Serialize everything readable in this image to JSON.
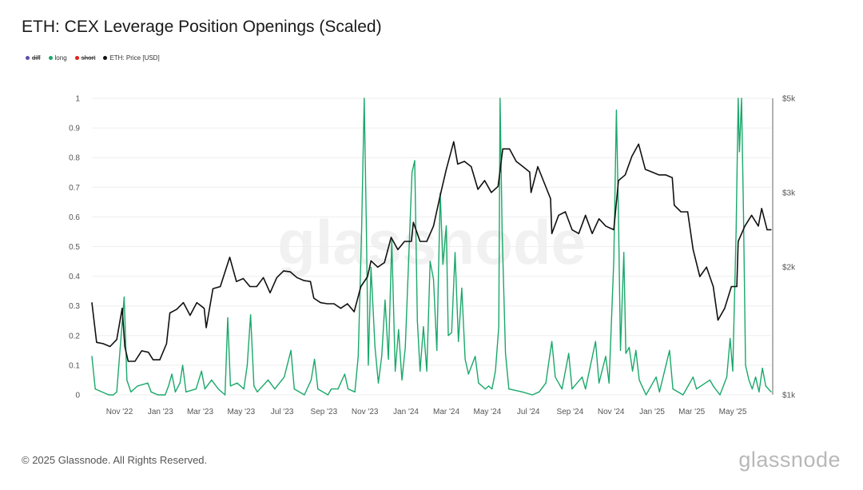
{
  "title": "ETH: CEX Leverage Position Openings (Scaled)",
  "legend": [
    {
      "label": "diff",
      "color": "#5b4fa8",
      "hidden": true
    },
    {
      "label": "long",
      "color": "#1aa86a",
      "hidden": false
    },
    {
      "label": "short",
      "color": "#e0211b",
      "hidden": true
    },
    {
      "label": "ETH: Price [USD]",
      "color": "#111111",
      "hidden": false
    }
  ],
  "watermark": "glassnode",
  "footer": {
    "copyright": "© 2025 Glassnode. All Rights Reserved.",
    "logo": "glassnode"
  },
  "colors": {
    "long": "#1aa86a",
    "price": "#111111",
    "grid": "#eeeeee"
  },
  "chart_data": {
    "type": "line",
    "x_ticks": [
      "Nov '22",
      "Jan '23",
      "Mar '23",
      "May '23",
      "Jul '23",
      "Sep '23",
      "Nov '23",
      "Jan '24",
      "Mar '24",
      "May '24",
      "Jul '24",
      "Sep '24",
      "Nov '24",
      "Jan '25",
      "Mar '25",
      "May '25"
    ],
    "x_range": [
      "2022-09-21",
      "2025-06-27"
    ],
    "y_left": {
      "ticks": [
        "0",
        "0.1",
        "0.2",
        "0.3",
        "0.4",
        "0.5",
        "0.6",
        "0.7",
        "0.8",
        "0.9",
        "1"
      ],
      "range": [
        0,
        1
      ]
    },
    "y_right": {
      "ticks": [
        "$1k",
        "$2k",
        "$3k",
        "$5k"
      ],
      "scale": "log",
      "range": [
        1000,
        5000
      ]
    },
    "series": [
      {
        "name": "long",
        "axis": "left",
        "points": [
          [
            "2022-09-21",
            0.13
          ],
          [
            "2022-09-26",
            0.02
          ],
          [
            "2022-10-16",
            0.0
          ],
          [
            "2022-10-23",
            0.0
          ],
          [
            "2022-10-28",
            0.01
          ],
          [
            "2022-11-08",
            0.33
          ],
          [
            "2022-11-12",
            0.05
          ],
          [
            "2022-11-18",
            0.01
          ],
          [
            "2022-11-28",
            0.03
          ],
          [
            "2022-12-13",
            0.04
          ],
          [
            "2022-12-18",
            0.01
          ],
          [
            "2022-12-28",
            0.0
          ],
          [
            "2023-01-08",
            0.0
          ],
          [
            "2023-01-13",
            0.03
          ],
          [
            "2023-01-18",
            0.07
          ],
          [
            "2023-01-23",
            0.01
          ],
          [
            "2023-01-30",
            0.04
          ],
          [
            "2023-02-03",
            0.1
          ],
          [
            "2023-02-08",
            0.01
          ],
          [
            "2023-02-23",
            0.02
          ],
          [
            "2023-03-03",
            0.08
          ],
          [
            "2023-03-08",
            0.02
          ],
          [
            "2023-03-18",
            0.05
          ],
          [
            "2023-03-28",
            0.02
          ],
          [
            "2023-04-07",
            0.0
          ],
          [
            "2023-04-11",
            0.26
          ],
          [
            "2023-04-15",
            0.03
          ],
          [
            "2023-04-25",
            0.04
          ],
          [
            "2023-05-05",
            0.02
          ],
          [
            "2023-05-10",
            0.1
          ],
          [
            "2023-05-15",
            0.27
          ],
          [
            "2023-05-20",
            0.03
          ],
          [
            "2023-05-25",
            0.01
          ],
          [
            "2023-06-10",
            0.05
          ],
          [
            "2023-06-20",
            0.02
          ],
          [
            "2023-07-04",
            0.06
          ],
          [
            "2023-07-14",
            0.15
          ],
          [
            "2023-07-19",
            0.02
          ],
          [
            "2023-08-03",
            0.0
          ],
          [
            "2023-08-13",
            0.05
          ],
          [
            "2023-08-18",
            0.12
          ],
          [
            "2023-08-23",
            0.02
          ],
          [
            "2023-09-07",
            0.0
          ],
          [
            "2023-09-12",
            0.02
          ],
          [
            "2023-09-22",
            0.02
          ],
          [
            "2023-10-02",
            0.07
          ],
          [
            "2023-10-07",
            0.02
          ],
          [
            "2023-10-17",
            0.01
          ],
          [
            "2023-10-22",
            0.13
          ],
          [
            "2023-10-27",
            0.55
          ],
          [
            "2023-10-31",
            1.0
          ],
          [
            "2023-11-03",
            0.58
          ],
          [
            "2023-11-06",
            0.1
          ],
          [
            "2023-11-10",
            0.43
          ],
          [
            "2023-11-16",
            0.16
          ],
          [
            "2023-11-21",
            0.04
          ],
          [
            "2023-11-26",
            0.13
          ],
          [
            "2023-12-01",
            0.32
          ],
          [
            "2023-12-06",
            0.12
          ],
          [
            "2023-12-11",
            0.52
          ],
          [
            "2023-12-16",
            0.08
          ],
          [
            "2023-12-21",
            0.22
          ],
          [
            "2023-12-26",
            0.05
          ],
          [
            "2023-12-31",
            0.16
          ],
          [
            "2024-01-10",
            0.75
          ],
          [
            "2024-01-14",
            0.79
          ],
          [
            "2024-01-18",
            0.25
          ],
          [
            "2024-01-22",
            0.08
          ],
          [
            "2024-01-27",
            0.23
          ],
          [
            "2024-02-01",
            0.08
          ],
          [
            "2024-02-06",
            0.45
          ],
          [
            "2024-02-11",
            0.39
          ],
          [
            "2024-02-16",
            0.15
          ],
          [
            "2024-02-21",
            0.68
          ],
          [
            "2024-02-25",
            0.44
          ],
          [
            "2024-03-01",
            0.57
          ],
          [
            "2024-03-04",
            0.2
          ],
          [
            "2024-03-09",
            0.21
          ],
          [
            "2024-03-14",
            0.48
          ],
          [
            "2024-03-19",
            0.18
          ],
          [
            "2024-03-24",
            0.36
          ],
          [
            "2024-03-29",
            0.12
          ],
          [
            "2024-04-03",
            0.07
          ],
          [
            "2024-04-13",
            0.13
          ],
          [
            "2024-04-18",
            0.04
          ],
          [
            "2024-04-28",
            0.02
          ],
          [
            "2024-05-03",
            0.03
          ],
          [
            "2024-05-08",
            0.02
          ],
          [
            "2024-05-13",
            0.08
          ],
          [
            "2024-05-18",
            0.23
          ],
          [
            "2024-05-20",
            1.0
          ],
          [
            "2024-05-23",
            0.55
          ],
          [
            "2024-05-28",
            0.14
          ],
          [
            "2024-06-02",
            0.02
          ],
          [
            "2024-06-22",
            0.01
          ],
          [
            "2024-07-07",
            0.0
          ],
          [
            "2024-07-17",
            0.01
          ],
          [
            "2024-07-27",
            0.04
          ],
          [
            "2024-08-01",
            0.12
          ],
          [
            "2024-08-05",
            0.18
          ],
          [
            "2024-08-10",
            0.06
          ],
          [
            "2024-08-20",
            0.02
          ],
          [
            "2024-08-30",
            0.14
          ],
          [
            "2024-09-04",
            0.02
          ],
          [
            "2024-09-19",
            0.06
          ],
          [
            "2024-09-24",
            0.02
          ],
          [
            "2024-10-09",
            0.18
          ],
          [
            "2024-10-14",
            0.04
          ],
          [
            "2024-10-24",
            0.13
          ],
          [
            "2024-10-29",
            0.04
          ],
          [
            "2024-11-05",
            0.45
          ],
          [
            "2024-11-09",
            0.96
          ],
          [
            "2024-11-12",
            0.6
          ],
          [
            "2024-11-15",
            0.15
          ],
          [
            "2024-11-20",
            0.48
          ],
          [
            "2024-11-23",
            0.14
          ],
          [
            "2024-11-28",
            0.16
          ],
          [
            "2024-12-03",
            0.08
          ],
          [
            "2024-12-08",
            0.15
          ],
          [
            "2024-12-13",
            0.05
          ],
          [
            "2024-12-23",
            0.0
          ],
          [
            "2025-01-07",
            0.06
          ],
          [
            "2025-01-12",
            0.01
          ],
          [
            "2025-01-27",
            0.15
          ],
          [
            "2025-02-01",
            0.02
          ],
          [
            "2025-02-16",
            0.0
          ],
          [
            "2025-03-03",
            0.06
          ],
          [
            "2025-03-08",
            0.02
          ],
          [
            "2025-03-28",
            0.05
          ],
          [
            "2025-04-02",
            0.03
          ],
          [
            "2025-04-12",
            0.0
          ],
          [
            "2025-04-22",
            0.06
          ],
          [
            "2025-04-27",
            0.19
          ],
          [
            "2025-05-01",
            0.08
          ],
          [
            "2025-05-06",
            0.55
          ],
          [
            "2025-05-09",
            1.0
          ],
          [
            "2025-05-11",
            0.82
          ],
          [
            "2025-05-14",
            1.0
          ],
          [
            "2025-05-17",
            0.6
          ],
          [
            "2025-05-20",
            0.1
          ],
          [
            "2025-05-25",
            0.05
          ],
          [
            "2025-05-30",
            0.02
          ],
          [
            "2025-06-04",
            0.06
          ],
          [
            "2025-06-09",
            0.01
          ],
          [
            "2025-06-14",
            0.09
          ],
          [
            "2025-06-19",
            0.03
          ],
          [
            "2025-06-27",
            0.01
          ]
        ]
      },
      {
        "name": "ETH: Price [USD]",
        "axis": "right",
        "points": [
          [
            "2022-09-21",
            1650
          ],
          [
            "2022-09-28",
            1330
          ],
          [
            "2022-10-08",
            1320
          ],
          [
            "2022-10-18",
            1300
          ],
          [
            "2022-10-28",
            1350
          ],
          [
            "2022-11-05",
            1600
          ],
          [
            "2022-11-09",
            1300
          ],
          [
            "2022-11-14",
            1200
          ],
          [
            "2022-11-24",
            1200
          ],
          [
            "2022-12-04",
            1270
          ],
          [
            "2022-12-14",
            1260
          ],
          [
            "2022-12-21",
            1210
          ],
          [
            "2022-12-31",
            1210
          ],
          [
            "2023-01-10",
            1320
          ],
          [
            "2023-01-15",
            1560
          ],
          [
            "2023-01-25",
            1590
          ],
          [
            "2023-02-04",
            1650
          ],
          [
            "2023-02-14",
            1540
          ],
          [
            "2023-02-24",
            1650
          ],
          [
            "2023-03-07",
            1600
          ],
          [
            "2023-03-10",
            1440
          ],
          [
            "2023-03-20",
            1780
          ],
          [
            "2023-03-31",
            1800
          ],
          [
            "2023-04-14",
            2110
          ],
          [
            "2023-04-24",
            1850
          ],
          [
            "2023-05-04",
            1880
          ],
          [
            "2023-05-14",
            1800
          ],
          [
            "2023-05-24",
            1800
          ],
          [
            "2023-06-03",
            1890
          ],
          [
            "2023-06-13",
            1740
          ],
          [
            "2023-06-23",
            1890
          ],
          [
            "2023-07-03",
            1960
          ],
          [
            "2023-07-13",
            1950
          ],
          [
            "2023-07-23",
            1890
          ],
          [
            "2023-08-02",
            1860
          ],
          [
            "2023-08-12",
            1850
          ],
          [
            "2023-08-17",
            1690
          ],
          [
            "2023-08-27",
            1650
          ],
          [
            "2023-09-06",
            1640
          ],
          [
            "2023-09-16",
            1640
          ],
          [
            "2023-09-26",
            1600
          ],
          [
            "2023-10-06",
            1640
          ],
          [
            "2023-10-16",
            1570
          ],
          [
            "2023-10-26",
            1800
          ],
          [
            "2023-11-05",
            1900
          ],
          [
            "2023-11-10",
            2070
          ],
          [
            "2023-11-20",
            2000
          ],
          [
            "2023-11-30",
            2050
          ],
          [
            "2023-12-10",
            2350
          ],
          [
            "2023-12-20",
            2200
          ],
          [
            "2023-12-30",
            2300
          ],
          [
            "2024-01-09",
            2300
          ],
          [
            "2024-01-12",
            2550
          ],
          [
            "2024-01-22",
            2300
          ],
          [
            "2024-02-01",
            2300
          ],
          [
            "2024-02-11",
            2500
          ],
          [
            "2024-02-21",
            2950
          ],
          [
            "2024-03-01",
            3400
          ],
          [
            "2024-03-12",
            3950
          ],
          [
            "2024-03-18",
            3500
          ],
          [
            "2024-03-28",
            3550
          ],
          [
            "2024-04-07",
            3450
          ],
          [
            "2024-04-17",
            3050
          ],
          [
            "2024-04-27",
            3200
          ],
          [
            "2024-05-07",
            3000
          ],
          [
            "2024-05-17",
            3100
          ],
          [
            "2024-05-24",
            3800
          ],
          [
            "2024-06-03",
            3800
          ],
          [
            "2024-06-13",
            3550
          ],
          [
            "2024-06-23",
            3450
          ],
          [
            "2024-07-03",
            3350
          ],
          [
            "2024-07-05",
            3000
          ],
          [
            "2024-07-15",
            3450
          ],
          [
            "2024-07-25",
            3150
          ],
          [
            "2024-08-03",
            2900
          ],
          [
            "2024-08-05",
            2400
          ],
          [
            "2024-08-15",
            2650
          ],
          [
            "2024-08-25",
            2700
          ],
          [
            "2024-09-04",
            2450
          ],
          [
            "2024-09-14",
            2400
          ],
          [
            "2024-09-24",
            2650
          ],
          [
            "2024-10-04",
            2400
          ],
          [
            "2024-10-14",
            2600
          ],
          [
            "2024-10-24",
            2500
          ],
          [
            "2024-11-05",
            2450
          ],
          [
            "2024-11-12",
            3200
          ],
          [
            "2024-11-22",
            3300
          ],
          [
            "2024-12-02",
            3650
          ],
          [
            "2024-12-12",
            3900
          ],
          [
            "2024-12-22",
            3400
          ],
          [
            "2025-01-01",
            3350
          ],
          [
            "2025-01-11",
            3300
          ],
          [
            "2025-01-21",
            3300
          ],
          [
            "2025-01-31",
            3250
          ],
          [
            "2025-02-03",
            2800
          ],
          [
            "2025-02-13",
            2700
          ],
          [
            "2025-02-23",
            2700
          ],
          [
            "2025-03-03",
            2200
          ],
          [
            "2025-03-13",
            1900
          ],
          [
            "2025-03-23",
            2000
          ],
          [
            "2025-04-02",
            1800
          ],
          [
            "2025-04-09",
            1500
          ],
          [
            "2025-04-19",
            1600
          ],
          [
            "2025-04-29",
            1800
          ],
          [
            "2025-05-07",
            1800
          ],
          [
            "2025-05-09",
            2300
          ],
          [
            "2025-05-19",
            2500
          ],
          [
            "2025-05-29",
            2650
          ],
          [
            "2025-06-08",
            2500
          ],
          [
            "2025-06-13",
            2750
          ],
          [
            "2025-06-21",
            2450
          ],
          [
            "2025-06-27",
            2450
          ]
        ]
      }
    ]
  }
}
